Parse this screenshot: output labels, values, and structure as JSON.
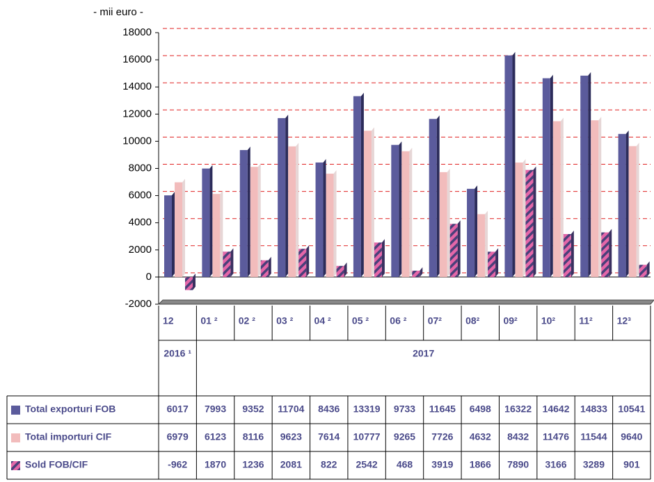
{
  "chart_data": {
    "type": "bar",
    "unit_label": "- mii euro -",
    "categories": [
      "12",
      "01 ²",
      "02 ²",
      "03 ²",
      "04 ²",
      "05 ²",
      "06 ²",
      "07²",
      "08²",
      "09²",
      "10²",
      "11²",
      "12³"
    ],
    "year_labels": [
      "2016 ¹",
      "2017"
    ],
    "series": [
      {
        "name": "Total exporturi FOB",
        "color": "#5b5b9c",
        "values": [
          6017,
          7993,
          9352,
          11704,
          8436,
          13319,
          9733,
          11645,
          6498,
          16322,
          14642,
          14833,
          10541
        ]
      },
      {
        "name": "Total importuri CIF",
        "color": "#f2bcbc",
        "values": [
          6979,
          6123,
          8116,
          9623,
          7614,
          10777,
          9265,
          7726,
          4632,
          8432,
          11476,
          11544,
          9640
        ]
      },
      {
        "name": "Sold FOB/CIF",
        "color": "#e466a8",
        "values": [
          -962,
          1870,
          1236,
          2081,
          822,
          2542,
          468,
          3919,
          1866,
          7890,
          3166,
          3289,
          901
        ]
      }
    ],
    "ylim": [
      -2000,
      18000
    ],
    "yticks": [
      -2000,
      0,
      2000,
      4000,
      6000,
      8000,
      10000,
      12000,
      14000,
      16000,
      18000
    ],
    "grid": true
  }
}
